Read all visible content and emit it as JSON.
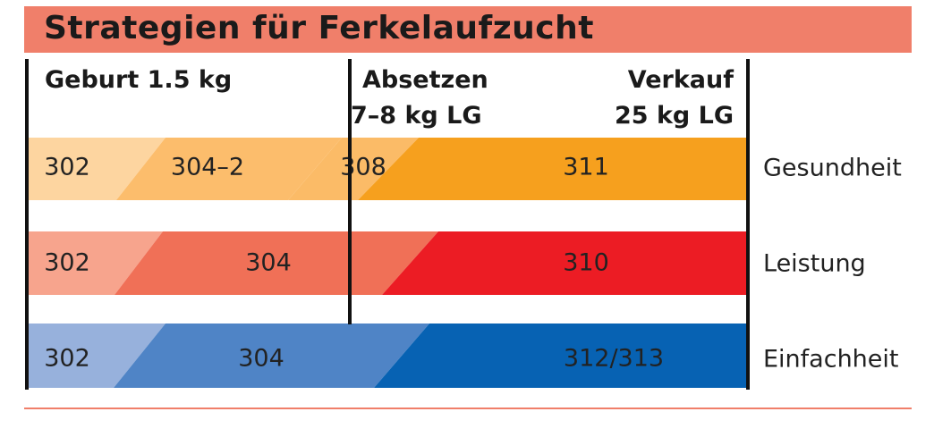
{
  "title": "Strategien für Ferkelaufzucht",
  "phases": {
    "birth": "Geburt 1.5 kg",
    "weaning_1": "Absetzen",
    "weaning_2": "7–8 kg LG",
    "sale_1": "Verkauf",
    "sale_2": "25 kg LG"
  },
  "rows": [
    {
      "strategy": "Gesundheit",
      "stages": [
        "302",
        "304–2",
        "308",
        "311"
      ],
      "colors": [
        "#fdd5a0",
        "#fcbd6c",
        "#fbbb67",
        "#f6a01e"
      ]
    },
    {
      "strategy": "Leistung",
      "stages": [
        "302",
        "304",
        "310"
      ],
      "colors": [
        "#f7a48d",
        "#f07057",
        "#ec1c24"
      ]
    },
    {
      "strategy": "Einfachheit",
      "stages": [
        "302",
        "304",
        "312/313"
      ],
      "colors": [
        "#97b1dc",
        "#4f84c6",
        "#0762b3"
      ]
    }
  ]
}
